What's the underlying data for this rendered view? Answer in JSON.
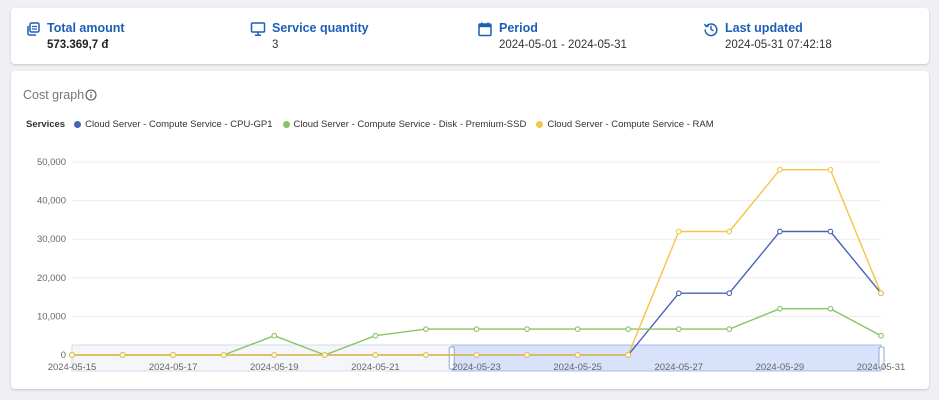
{
  "summary": {
    "total_amount": {
      "label": "Total amount",
      "value": "573.369,7 đ",
      "icon": "layers-icon"
    },
    "service_quantity": {
      "label": "Service quantity",
      "value": "3",
      "icon": "monitor-icon"
    },
    "period": {
      "label": "Period",
      "value": "2024-05-01 - 2024-05-31",
      "icon": "calendar-icon"
    },
    "last_updated": {
      "label": "Last updated",
      "value": "2024-05-31 07:42:18",
      "icon": "history-icon"
    }
  },
  "cost_graph": {
    "title": "Cost graph",
    "legend_title": "Services",
    "accent_color": "#1d5fb8"
  },
  "chart_data": {
    "type": "line",
    "x": [
      "2024-05-15",
      "2024-05-16",
      "2024-05-17",
      "2024-05-18",
      "2024-05-19",
      "2024-05-20",
      "2024-05-21",
      "2024-05-22",
      "2024-05-23",
      "2024-05-24",
      "2024-05-25",
      "2024-05-26",
      "2024-05-27",
      "2024-05-28",
      "2024-05-29",
      "2024-05-30",
      "2024-05-31"
    ],
    "x_tick_labels": [
      "2024-05-15",
      "2024-05-17",
      "2024-05-19",
      "2024-05-21",
      "2024-05-23",
      "2024-05-25",
      "2024-05-27",
      "2024-05-29",
      "2024-05-31"
    ],
    "ylim": [
      0,
      50000
    ],
    "y_ticks": [
      "0",
      "10,000",
      "20,000",
      "30,000",
      "40,000",
      "50,000"
    ],
    "grid": true,
    "legend_position": "top-left",
    "series": [
      {
        "name": "Cloud Server - Compute Service - CPU-GP1",
        "color": "#4763b8",
        "values": [
          0,
          0,
          0,
          0,
          0,
          0,
          0,
          0,
          0,
          0,
          0,
          0,
          16000,
          16000,
          32000,
          32000,
          16000
        ]
      },
      {
        "name": "Cloud Server - Compute Service - Disk - Premium-SSD",
        "color": "#86c561",
        "values": [
          0,
          0,
          0,
          0,
          5000,
          0,
          5000,
          6700,
          6700,
          6700,
          6700,
          6700,
          6700,
          6700,
          12000,
          12000,
          5000
        ]
      },
      {
        "name": "Cloud Server - Compute Service - RAM",
        "color": "#f2c648",
        "values": [
          0,
          0,
          0,
          0,
          0,
          0,
          0,
          0,
          0,
          0,
          0,
          0,
          32000,
          32000,
          48000,
          48000,
          16000
        ]
      }
    ],
    "zoom_slider": {
      "start_fraction": 0.47,
      "end_fraction": 1.0
    }
  }
}
